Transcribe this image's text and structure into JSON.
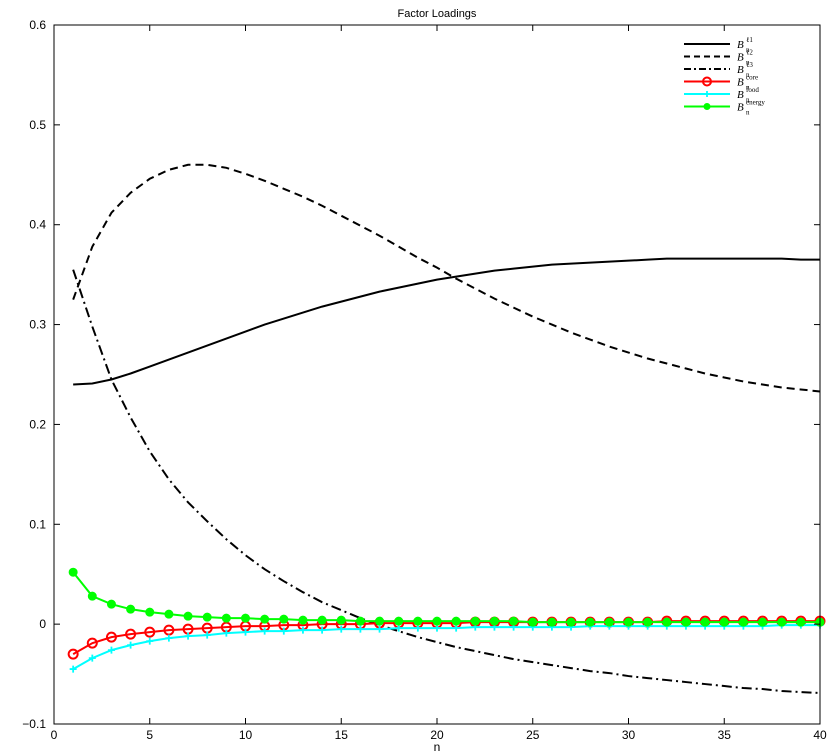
{
  "chart_data": {
    "type": "line",
    "title": "Factor Loadings",
    "xlabel": "n",
    "ylabel": "",
    "xlim": [
      0,
      40
    ],
    "ylim": [
      -0.1,
      0.6
    ],
    "xticks": [
      0,
      5,
      10,
      15,
      20,
      25,
      30,
      35,
      40
    ],
    "yticks": [
      -0.1,
      0,
      0.1,
      0.2,
      0.3,
      0.4,
      0.5,
      0.6
    ],
    "xtick_labels": [
      "0",
      "5",
      "10",
      "15",
      "20",
      "25",
      "30",
      "35",
      "40"
    ],
    "ytick_labels": [
      "−0.1",
      "0",
      "0.1",
      "0.2",
      "0.3",
      "0.4",
      "0.5",
      "0.6"
    ],
    "grid": false,
    "legend_position": "top-right",
    "x": [
      1,
      2,
      3,
      4,
      5,
      6,
      7,
      8,
      9,
      10,
      11,
      12,
      13,
      14,
      15,
      16,
      17,
      18,
      19,
      20,
      21,
      22,
      23,
      24,
      25,
      26,
      27,
      28,
      29,
      30,
      31,
      32,
      33,
      34,
      35,
      36,
      37,
      38,
      39,
      40
    ],
    "series": [
      {
        "name": "B_n^{ℓ1}",
        "legend_base": "B",
        "legend_sub": "n",
        "legend_sup": "ℓ1",
        "color": "#000000",
        "style": "solid",
        "marker": "none",
        "values": [
          0.24,
          0.241,
          0.245,
          0.251,
          0.258,
          0.265,
          0.272,
          0.279,
          0.286,
          0.293,
          0.3,
          0.306,
          0.312,
          0.318,
          0.323,
          0.328,
          0.333,
          0.337,
          0.341,
          0.345,
          0.348,
          0.351,
          0.354,
          0.356,
          0.358,
          0.36,
          0.361,
          0.362,
          0.363,
          0.364,
          0.365,
          0.366,
          0.366,
          0.366,
          0.366,
          0.366,
          0.366,
          0.366,
          0.365,
          0.365
        ]
      },
      {
        "name": "B_n^{ℓ2}",
        "legend_base": "B",
        "legend_sub": "n",
        "legend_sup": "ℓ2",
        "color": "#000000",
        "style": "dashed",
        "marker": "none",
        "values": [
          0.325,
          0.378,
          0.412,
          0.432,
          0.446,
          0.455,
          0.46,
          0.46,
          0.457,
          0.451,
          0.444,
          0.436,
          0.428,
          0.419,
          0.409,
          0.399,
          0.389,
          0.378,
          0.367,
          0.357,
          0.346,
          0.336,
          0.326,
          0.317,
          0.308,
          0.3,
          0.292,
          0.285,
          0.278,
          0.272,
          0.266,
          0.261,
          0.256,
          0.251,
          0.247,
          0.243,
          0.24,
          0.237,
          0.235,
          0.233
        ]
      },
      {
        "name": "B_n^{ℓ3}",
        "legend_base": "B",
        "legend_sub": "n",
        "legend_sup": "ℓ3",
        "color": "#000000",
        "style": "dashdot",
        "marker": "none",
        "values": [
          0.355,
          0.298,
          0.245,
          0.207,
          0.173,
          0.145,
          0.122,
          0.103,
          0.085,
          0.069,
          0.055,
          0.043,
          0.032,
          0.022,
          0.014,
          0.006,
          -0.001,
          -0.007,
          -0.013,
          -0.018,
          -0.023,
          -0.027,
          -0.031,
          -0.035,
          -0.038,
          -0.041,
          -0.044,
          -0.047,
          -0.049,
          -0.052,
          -0.054,
          -0.056,
          -0.058,
          -0.06,
          -0.062,
          -0.064,
          -0.065,
          -0.067,
          -0.068,
          -0.069
        ]
      },
      {
        "name": "B_n^{core}",
        "legend_base": "B",
        "legend_sub": "n",
        "legend_sup": "core",
        "color": "#ff0000",
        "style": "solid",
        "marker": "circle",
        "values": [
          -0.03,
          -0.019,
          -0.013,
          -0.01,
          -0.008,
          -0.006,
          -0.005,
          -0.004,
          -0.003,
          -0.002,
          -0.002,
          -0.001,
          -0.001,
          0.0,
          0.0,
          0.0,
          0.001,
          0.001,
          0.001,
          0.001,
          0.001,
          0.002,
          0.002,
          0.002,
          0.002,
          0.002,
          0.002,
          0.002,
          0.002,
          0.002,
          0.002,
          0.003,
          0.003,
          0.003,
          0.003,
          0.003,
          0.003,
          0.003,
          0.003,
          0.003
        ]
      },
      {
        "name": "B_n^{food}",
        "legend_base": "B",
        "legend_sub": "n",
        "legend_sup": "food",
        "color": "#00ffff",
        "style": "solid",
        "marker": "plus",
        "values": [
          -0.045,
          -0.034,
          -0.026,
          -0.021,
          -0.017,
          -0.014,
          -0.012,
          -0.011,
          -0.009,
          -0.008,
          -0.007,
          -0.007,
          -0.006,
          -0.006,
          -0.005,
          -0.005,
          -0.005,
          -0.004,
          -0.004,
          -0.004,
          -0.004,
          -0.003,
          -0.003,
          -0.003,
          -0.003,
          -0.003,
          -0.003,
          -0.002,
          -0.002,
          -0.002,
          -0.002,
          -0.002,
          -0.002,
          -0.002,
          -0.002,
          -0.002,
          -0.002,
          -0.001,
          -0.001,
          -0.001
        ]
      },
      {
        "name": "B_n^{energy}",
        "legend_base": "B",
        "legend_sub": "n",
        "legend_sup": "energy",
        "color": "#00ff00",
        "style": "solid",
        "marker": "dot",
        "values": [
          0.052,
          0.028,
          0.02,
          0.015,
          0.012,
          0.01,
          0.008,
          0.007,
          0.006,
          0.006,
          0.005,
          0.005,
          0.004,
          0.004,
          0.004,
          0.003,
          0.003,
          0.003,
          0.003,
          0.003,
          0.003,
          0.003,
          0.003,
          0.003,
          0.002,
          0.002,
          0.002,
          0.002,
          0.002,
          0.002,
          0.002,
          0.002,
          0.002,
          0.002,
          0.002,
          0.002,
          0.002,
          0.002,
          0.002,
          0.002
        ]
      }
    ]
  }
}
